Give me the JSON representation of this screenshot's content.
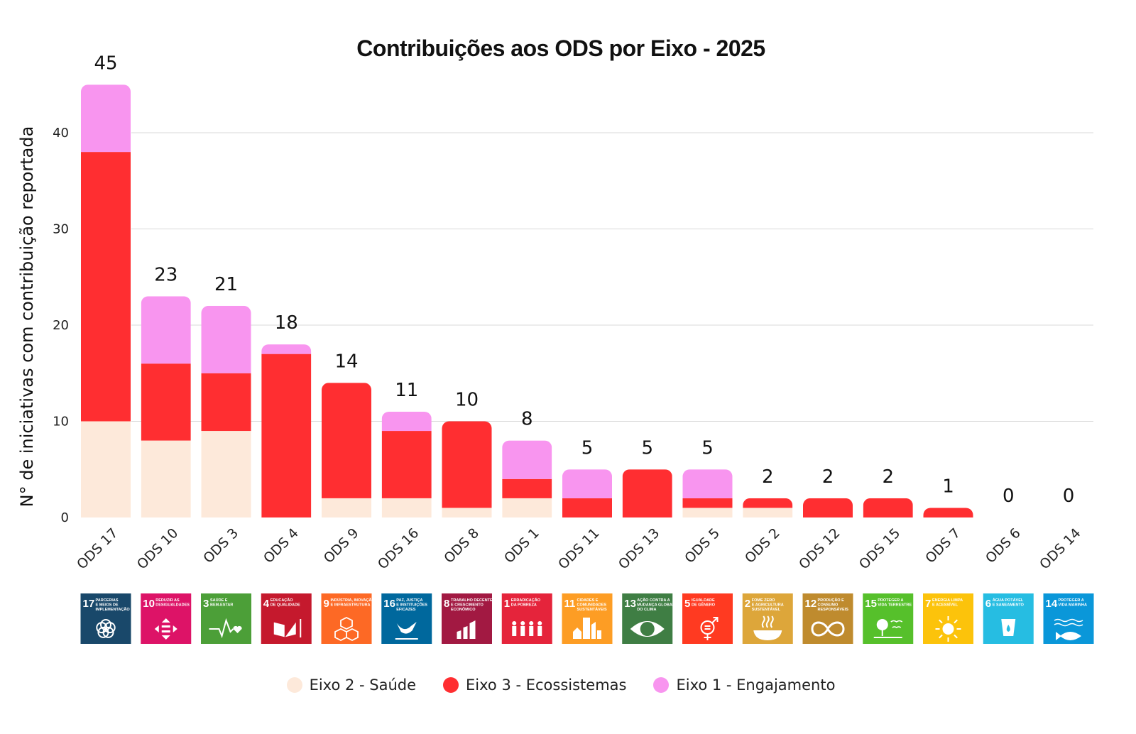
{
  "chart_data": {
    "type": "bar",
    "stacked": true,
    "title": "Contribuições aos ODS por Eixo - 2025",
    "xlabel": "",
    "ylabel": "N° de iniciativas com contribuição reportada",
    "ylim": [
      0,
      45
    ],
    "yticks": [
      0,
      10,
      20,
      30,
      40
    ],
    "grid": true,
    "legend_position": "bottom",
    "categories": [
      "ODS 17",
      "ODS 10",
      "ODS 3",
      "ODS 4",
      "ODS 9",
      "ODS 16",
      "ODS 8",
      "ODS 1",
      "ODS 11",
      "ODS 13",
      "ODS 5",
      "ODS 2",
      "ODS 12",
      "ODS 15",
      "ODS 7",
      "ODS 6",
      "ODS 14"
    ],
    "series": [
      {
        "name": "Eixo 2 - Saúde",
        "color": "#fde9da",
        "values": [
          10,
          8,
          9,
          0,
          2,
          2,
          1,
          2,
          0,
          0,
          1,
          1,
          0,
          0,
          0,
          0,
          0
        ]
      },
      {
        "name": "Eixo 3 - Ecossistemas",
        "color": "#ff2e31",
        "values": [
          28,
          8,
          6,
          17,
          12,
          7,
          9,
          2,
          2,
          5,
          1,
          1,
          2,
          2,
          1,
          0,
          0
        ]
      },
      {
        "name": "Eixo 1 - Engajamento",
        "color": "#f895ef",
        "values": [
          7,
          7,
          7,
          1,
          0,
          2,
          0,
          4,
          3,
          0,
          3,
          0,
          0,
          0,
          0,
          0,
          0
        ]
      }
    ],
    "data_labels": [
      "45",
      "23",
      "21",
      "18",
      "14",
      "11",
      "10",
      "8",
      "5",
      "5",
      "5",
      "2",
      "2",
      "2",
      "1",
      "0",
      "0"
    ]
  },
  "sdg_icons": [
    {
      "num": "17",
      "lines": [
        "PARCERIAS",
        "E MEIOS DE",
        "IMPLEMENTAÇÃO"
      ],
      "color": "#19486a",
      "icon": "flower-icon"
    },
    {
      "num": "10",
      "lines": [
        "REDUZIR AS",
        "DESIGUALDADES"
      ],
      "color": "#dd1367",
      "icon": "equality-arrows-icon"
    },
    {
      "num": "3",
      "lines": [
        "SAÚDE E",
        "BEM-ESTAR"
      ],
      "color": "#4c9f38",
      "icon": "heartbeat-icon"
    },
    {
      "num": "4",
      "lines": [
        "EDUCAÇÃO",
        "DE QUALIDADE"
      ],
      "color": "#c5192d",
      "icon": "book-icon"
    },
    {
      "num": "9",
      "lines": [
        "INDÚSTRIA, INOVAÇÃO",
        "E INFRAESTRUTURA"
      ],
      "color": "#fd6925",
      "icon": "cubes-icon"
    },
    {
      "num": "16",
      "lines": [
        "PAZ, JUSTIÇA",
        "E INSTITUIÇÕES",
        "EFICAZES"
      ],
      "color": "#00689d",
      "icon": "dove-icon"
    },
    {
      "num": "8",
      "lines": [
        "TRABALHO DECENTE",
        "E CRESCIMENTO",
        "ECONÔMICO"
      ],
      "color": "#a21942",
      "icon": "growth-chart-icon"
    },
    {
      "num": "1",
      "lines": [
        "ERRADICAÇÃO",
        "DA POBREZA"
      ],
      "color": "#e5243b",
      "icon": "family-icon"
    },
    {
      "num": "11",
      "lines": [
        "CIDADES E",
        "COMUNIDADES",
        "SUSTENTÁVEIS"
      ],
      "color": "#fd9d24",
      "icon": "city-icon"
    },
    {
      "num": "13",
      "lines": [
        "AÇÃO CONTRA A",
        "MUDANÇA GLOBAL",
        "DO CLIMA"
      ],
      "color": "#3f7e44",
      "icon": "eye-globe-icon"
    },
    {
      "num": "5",
      "lines": [
        "IGUALDADE",
        "DE GÊNERO"
      ],
      "color": "#ff3a21",
      "icon": "gender-icon"
    },
    {
      "num": "2",
      "lines": [
        "FOME ZERO",
        "E AGRICULTURA",
        "SUSTENTÁVEL"
      ],
      "color": "#dda63a",
      "icon": "bowl-icon"
    },
    {
      "num": "12",
      "lines": [
        "PRODUÇÃO E",
        "CONSUMO",
        "RESPONSÁVEIS"
      ],
      "color": "#bf8b2e",
      "icon": "infinity-icon"
    },
    {
      "num": "15",
      "lines": [
        "PROTEGER A",
        "VIDA TERRESTRE"
      ],
      "color": "#56c02b",
      "icon": "tree-icon"
    },
    {
      "num": "7",
      "lines": [
        "ENERGIA LIMPA",
        "E ACESSÍVEL"
      ],
      "color": "#fcc30b",
      "icon": "sun-power-icon"
    },
    {
      "num": "6",
      "lines": [
        "ÁGUA POTÁVEL",
        "E SANEAMENTO"
      ],
      "color": "#26bde2",
      "icon": "water-glass-icon"
    },
    {
      "num": "14",
      "lines": [
        "PROTEGER A",
        "VIDA MARINHA"
      ],
      "color": "#0a97d9",
      "icon": "fish-icon"
    }
  ]
}
